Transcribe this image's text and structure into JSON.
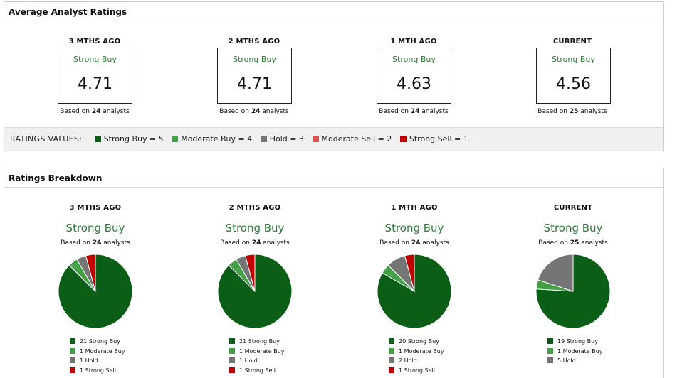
{
  "colors": {
    "strong_buy": "#0b5e16",
    "moderate_buy": "#43a047",
    "hold": "#757575",
    "moderate_sell": "#e05252",
    "strong_sell": "#c00000",
    "rating_text": "#2e7d3a"
  },
  "avg_panel": {
    "title": "Average Analyst Ratings",
    "columns": [
      {
        "period": "3 MTHS AGO",
        "rating": "Strong Buy",
        "value": "4.71",
        "based_prefix": "Based on",
        "analysts": "24",
        "based_suffix": "analysts"
      },
      {
        "period": "2 MTHS AGO",
        "rating": "Strong Buy",
        "value": "4.71",
        "based_prefix": "Based on",
        "analysts": "24",
        "based_suffix": "analysts"
      },
      {
        "period": "1 MTH AGO",
        "rating": "Strong Buy",
        "value": "4.63",
        "based_prefix": "Based on",
        "analysts": "24",
        "based_suffix": "analysts"
      },
      {
        "period": "CURRENT",
        "rating": "Strong Buy",
        "value": "4.56",
        "based_prefix": "Based on",
        "analysts": "25",
        "based_suffix": "analysts"
      }
    ],
    "legend_label": "RATINGS VALUES:",
    "legend_items": [
      {
        "label": "Strong Buy = 5",
        "color": "#0b5e16"
      },
      {
        "label": "Moderate Buy = 4",
        "color": "#43a047"
      },
      {
        "label": "Hold = 3",
        "color": "#757575"
      },
      {
        "label": "Moderate Sell = 2",
        "color": "#e05252"
      },
      {
        "label": "Strong Sell = 1",
        "color": "#c00000"
      }
    ]
  },
  "breakdown_panel": {
    "title": "Ratings Breakdown"
  },
  "chart_data": [
    {
      "type": "pie",
      "title": "3 MTHS AGO",
      "subtitle": "Strong Buy",
      "based_prefix": "Based on",
      "analysts": "24",
      "based_suffix": "analysts",
      "slices": [
        {
          "label": "21 Strong Buy",
          "value": 21,
          "color": "#0b5e16"
        },
        {
          "label": "1 Moderate Buy",
          "value": 1,
          "color": "#43a047"
        },
        {
          "label": "1 Hold",
          "value": 1,
          "color": "#757575"
        },
        {
          "label": "1 Strong Sell",
          "value": 1,
          "color": "#c00000"
        }
      ]
    },
    {
      "type": "pie",
      "title": "2 MTHS AGO",
      "subtitle": "Strong Buy",
      "based_prefix": "Based on",
      "analysts": "24",
      "based_suffix": "analysts",
      "slices": [
        {
          "label": "21 Strong Buy",
          "value": 21,
          "color": "#0b5e16"
        },
        {
          "label": "1 Moderate Buy",
          "value": 1,
          "color": "#43a047"
        },
        {
          "label": "1 Hold",
          "value": 1,
          "color": "#757575"
        },
        {
          "label": "1 Strong Sell",
          "value": 1,
          "color": "#c00000"
        }
      ]
    },
    {
      "type": "pie",
      "title": "1 MTH AGO",
      "subtitle": "Strong Buy",
      "based_prefix": "Based on",
      "analysts": "24",
      "based_suffix": "analysts",
      "slices": [
        {
          "label": "20 Strong Buy",
          "value": 20,
          "color": "#0b5e16"
        },
        {
          "label": "1 Moderate Buy",
          "value": 1,
          "color": "#43a047"
        },
        {
          "label": "2 Hold",
          "value": 2,
          "color": "#757575"
        },
        {
          "label": "1 Strong Sell",
          "value": 1,
          "color": "#c00000"
        }
      ]
    },
    {
      "type": "pie",
      "title": "CURRENT",
      "subtitle": "Strong Buy",
      "based_prefix": "Based on",
      "analysts": "25",
      "based_suffix": "analysts",
      "slices": [
        {
          "label": "19 Strong Buy",
          "value": 19,
          "color": "#0b5e16"
        },
        {
          "label": "1 Moderate Buy",
          "value": 1,
          "color": "#43a047"
        },
        {
          "label": "5 Hold",
          "value": 5,
          "color": "#757575"
        }
      ]
    }
  ]
}
